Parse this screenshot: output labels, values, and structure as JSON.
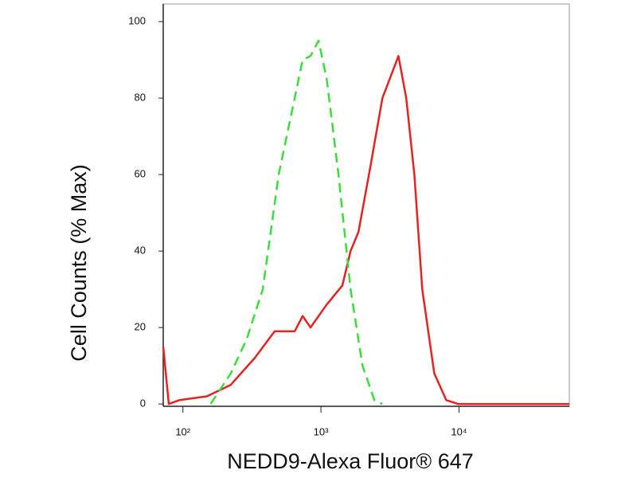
{
  "chart_data": {
    "type": "line",
    "x_label": "NEDD9-Alexa Fluor® 647",
    "y_label": "Cell Counts (% Max)",
    "xscale": "log",
    "xlim": [
      72,
      63000
    ],
    "ylim": [
      -0.6,
      104.6
    ],
    "xticks": [
      {
        "value": 100,
        "label": "10²"
      },
      {
        "value": 1000,
        "label": "10³"
      },
      {
        "value": 10000,
        "label": "10⁴"
      }
    ],
    "yticks": [
      0,
      20,
      40,
      60,
      80,
      100
    ],
    "series": [
      {
        "color": "#e32222",
        "dash": false,
        "x": [
          72,
          79,
          94,
          149,
          222,
          331,
          462,
          645,
          737,
          841,
          1100,
          1430,
          1640,
          1870,
          2280,
          2790,
          3640,
          4150,
          4750,
          5420,
          6620,
          8090,
          9860,
          63000
        ],
        "values": [
          15,
          0,
          1,
          2,
          5,
          12,
          19,
          19,
          23,
          20,
          26,
          31,
          40,
          45,
          62,
          80,
          91,
          80,
          60,
          30,
          8,
          1,
          0,
          0
        ]
      },
      {
        "color": "#3ddc3d",
        "dash": true,
        "x": [
          159,
          222,
          290,
          379,
          494,
          645,
          737,
          841,
          961,
          1100,
          1340,
          1640,
          2000,
          2440,
          2790
        ],
        "values": [
          0,
          8,
          17,
          30,
          60,
          80,
          90,
          91,
          95,
          85,
          60,
          30,
          10,
          1,
          0
        ]
      }
    ]
  }
}
